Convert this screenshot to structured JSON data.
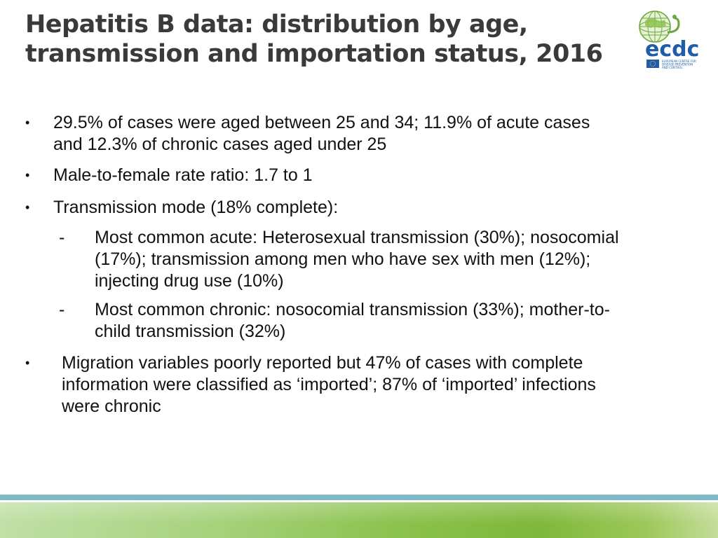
{
  "slide": {
    "title_lines": [
      "Hepatitis B data: distribution by age,",
      "transmission and importation status, 2016"
    ],
    "logo": {
      "icon": "ecdc-globe-logo",
      "text": "ecdc",
      "subtitle_lines": [
        "EUROPEAN CENTRE FOR",
        "DISEASE PREVENTION",
        "AND CONTROL"
      ],
      "colors": {
        "green": "#6aa83a",
        "blue": "#1f5da8"
      }
    },
    "bullets": [
      {
        "marker": "•",
        "lines": [
          "29.5% of cases were aged between 25 and 34; 11.9% of acute cases",
          "and 12.3% of chronic cases aged under 25"
        ]
      },
      {
        "marker": "•",
        "lines": [
          "Male-to-female rate ratio: 1.7 to 1"
        ]
      },
      {
        "marker": "•",
        "lines": [
          "Transmission mode (18% complete):"
        ]
      },
      {
        "marker": "-",
        "lines": [
          "Most common acute: Heterosexual transmission (30%); nosocomial",
          "(17%); transmission among men who have sex with men (12%);",
          "injecting drug use (10%)"
        ]
      },
      {
        "marker": "-",
        "lines": [
          "Most common chronic: nosocomial transmission (33%); mother-to-",
          "child transmission (32%)"
        ]
      },
      {
        "marker": "•",
        "lines": [
          "Migration variables poorly reported but 47% of cases with complete",
          "information were classified as ‘imported’; 87% of ‘imported’ infections",
          "were chronic"
        ]
      }
    ],
    "colors": {
      "title": "#3a3a3a",
      "footer_line": "#7fb9c6",
      "footer_band": "#8cc24e"
    }
  }
}
